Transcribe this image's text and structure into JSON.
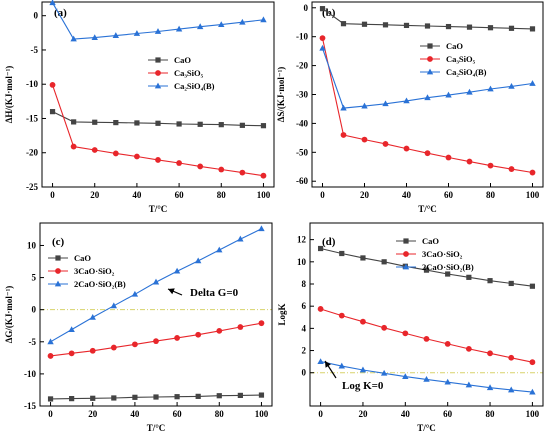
{
  "colors": {
    "CaO": "#444444",
    "C3S": "#e8262b",
    "C2S": "#2a72d6",
    "refline": "#d8d26a"
  },
  "chart_data": [
    {
      "type": "line",
      "panel_label": "(a)",
      "xlabel": "T/°C",
      "ylabel": "ΔH/(KJ·mol⁻¹)",
      "xlim": [
        -5,
        105
      ],
      "ylim": [
        -25,
        2
      ],
      "xticks": [
        0,
        20,
        40,
        60,
        80,
        100
      ],
      "yticks": [
        0,
        -5,
        -10,
        -15,
        -20,
        -25
      ],
      "legend_position": "middle-right",
      "x": [
        0,
        10,
        20,
        30,
        40,
        50,
        60,
        70,
        80,
        90,
        100
      ],
      "series": [
        {
          "name": "CaO",
          "marker": "square",
          "color_key": "CaO",
          "values": [
            -14.0,
            -15.5,
            -15.55,
            -15.6,
            -15.65,
            -15.7,
            -15.8,
            -15.85,
            -15.9,
            -16.0,
            -16.05
          ]
        },
        {
          "name": "Ca₃SiO₅",
          "marker": "circle",
          "color_key": "C3S",
          "values": [
            -10.1,
            -19.1,
            -19.6,
            -20.1,
            -20.55,
            -21.05,
            -21.5,
            -22.0,
            -22.45,
            -22.9,
            -23.35
          ]
        },
        {
          "name": "Ca₂SiO₄(B)",
          "marker": "triangle",
          "color_key": "C2S",
          "values": [
            1.9,
            -3.4,
            -3.2,
            -2.9,
            -2.6,
            -2.3,
            -1.95,
            -1.6,
            -1.3,
            -0.95,
            -0.6
          ]
        }
      ]
    },
    {
      "type": "line",
      "panel_label": "(b)",
      "xlabel": "T/°C",
      "ylabel": "ΔS/(KJ·mol⁻¹)",
      "xlim": [
        -5,
        105
      ],
      "ylim": [
        -62,
        2
      ],
      "xticks": [
        0,
        20,
        40,
        60,
        80,
        100
      ],
      "yticks": [
        0,
        -10,
        -20,
        -30,
        -40,
        -50,
        -60
      ],
      "legend_position": "top-right",
      "x": [
        0,
        10,
        20,
        30,
        40,
        50,
        60,
        70,
        80,
        90,
        100
      ],
      "series": [
        {
          "name": "CaO",
          "marker": "square",
          "color_key": "CaO",
          "values": [
            -0.3,
            -5.5,
            -5.7,
            -5.9,
            -6.1,
            -6.3,
            -6.5,
            -6.7,
            -6.9,
            -7.1,
            -7.3
          ]
        },
        {
          "name": "Ca₃SiO₅",
          "marker": "circle",
          "color_key": "C3S",
          "values": [
            -10.5,
            -44.0,
            -45.6,
            -47.1,
            -48.7,
            -50.3,
            -51.8,
            -53.2,
            -54.6,
            -55.8,
            -57.0
          ]
        },
        {
          "name": "Ca₂SiO₄(B)",
          "marker": "triangle",
          "color_key": "C2S",
          "values": [
            -14.0,
            -34.7,
            -34.0,
            -33.2,
            -32.2,
            -31.1,
            -30.2,
            -29.2,
            -28.1,
            -27.2,
            -26.2
          ]
        }
      ]
    },
    {
      "type": "line",
      "panel_label": "(c)",
      "xlabel": "T/°C",
      "ylabel": "ΔG/(KJ·mol⁻¹)",
      "xlim": [
        -5,
        105
      ],
      "ylim": [
        -15,
        13.5
      ],
      "xticks": [
        0,
        20,
        40,
        60,
        80,
        100
      ],
      "yticks": [
        10,
        5,
        0,
        -5,
        -10,
        -15
      ],
      "legend_position": "top-left",
      "reference_line": {
        "y": 0,
        "style": "dash-dot"
      },
      "annotation": "Delta G=0",
      "x": [
        0,
        10,
        20,
        30,
        40,
        50,
        60,
        70,
        80,
        90,
        100
      ],
      "series": [
        {
          "name": "CaO",
          "marker": "square",
          "color_key": "CaO",
          "values": [
            -13.9,
            -13.85,
            -13.8,
            -13.75,
            -13.65,
            -13.6,
            -13.55,
            -13.5,
            -13.4,
            -13.35,
            -13.3
          ]
        },
        {
          "name": "3CaO·SiO₂",
          "marker": "circle",
          "color_key": "C3S",
          "values": [
            -7.2,
            -6.8,
            -6.4,
            -5.9,
            -5.4,
            -4.9,
            -4.4,
            -3.9,
            -3.3,
            -2.7,
            -2.1
          ]
        },
        {
          "name": "2CaO·SiO₂(B)",
          "marker": "triangle",
          "color_key": "C2S",
          "values": [
            -5.0,
            -3.1,
            -1.2,
            0.6,
            2.4,
            4.3,
            6.0,
            7.6,
            9.3,
            11.0,
            12.6
          ]
        }
      ]
    },
    {
      "type": "line",
      "panel_label": "(d)",
      "xlabel": "T/°C",
      "ylabel": "LogK",
      "xlim": [
        -5,
        105
      ],
      "ylim": [
        -3,
        13.5
      ],
      "xticks": [
        0,
        20,
        40,
        60,
        80,
        100
      ],
      "yticks": [
        0,
        2,
        4,
        6,
        8,
        10,
        12
      ],
      "legend_position": "top-right",
      "reference_line": {
        "y": 0,
        "style": "dash-dot"
      },
      "annotation": "Log K=0",
      "x": [
        0,
        10,
        20,
        30,
        40,
        50,
        60,
        70,
        80,
        90,
        100
      ],
      "series": [
        {
          "name": "CaO",
          "marker": "square",
          "color_key": "CaO",
          "values": [
            11.2,
            10.75,
            10.35,
            10.0,
            9.6,
            9.25,
            8.9,
            8.6,
            8.3,
            8.05,
            7.8
          ]
        },
        {
          "name": "3CaO·SiO₂",
          "marker": "circle",
          "color_key": "C3S",
          "values": [
            5.75,
            5.15,
            4.6,
            4.05,
            3.55,
            3.05,
            2.6,
            2.15,
            1.75,
            1.35,
            0.95
          ]
        },
        {
          "name": "2CaO·SiO₂(B)",
          "marker": "triangle",
          "color_key": "C2S",
          "values": [
            1.0,
            0.6,
            0.25,
            -0.05,
            -0.35,
            -0.6,
            -0.85,
            -1.1,
            -1.35,
            -1.55,
            -1.75
          ]
        }
      ]
    }
  ]
}
